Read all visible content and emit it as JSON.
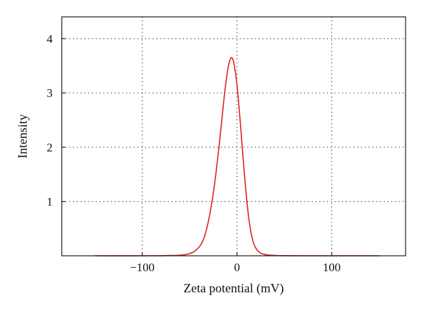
{
  "chart_data": {
    "type": "line",
    "title": "",
    "xlabel": "Zeta potential (mV)",
    "ylabel": "Intensity",
    "xlim": [
      -185,
      178
    ],
    "ylim": [
      0,
      4.4
    ],
    "xticks": [
      -100,
      0,
      100
    ],
    "xtick_labels": [
      "−100",
      "0",
      "100"
    ],
    "yticks": [
      1,
      2,
      3,
      4
    ],
    "ytick_labels": [
      "1",
      "2",
      "3",
      "4"
    ],
    "grid": true,
    "grid_style": "dotted",
    "legend": "none",
    "series": [
      {
        "color": "#e0201b",
        "x": [
          -150,
          -90,
          -70,
          -60,
          -55,
          -50,
          -45,
          -40,
          -37,
          -34,
          -31,
          -28,
          -25,
          -22,
          -19,
          -16,
          -13,
          -10,
          -8,
          -6,
          -4,
          -2,
          0,
          2,
          4,
          6,
          8,
          10,
          12,
          14,
          16,
          18,
          20,
          22,
          25,
          28,
          32,
          36,
          40,
          45,
          50,
          60,
          75,
          100,
          150
        ],
        "y": [
          0,
          0,
          0.005,
          0.01,
          0.02,
          0.04,
          0.08,
          0.16,
          0.24,
          0.37,
          0.57,
          0.83,
          1.15,
          1.55,
          2.0,
          2.5,
          3.0,
          3.4,
          3.57,
          3.65,
          3.6,
          3.42,
          3.15,
          2.78,
          2.35,
          1.9,
          1.47,
          1.08,
          0.76,
          0.51,
          0.33,
          0.21,
          0.14,
          0.09,
          0.05,
          0.03,
          0.015,
          0.01,
          0.005,
          0.003,
          0.002,
          0.001,
          0,
          0,
          0
        ]
      }
    ]
  }
}
